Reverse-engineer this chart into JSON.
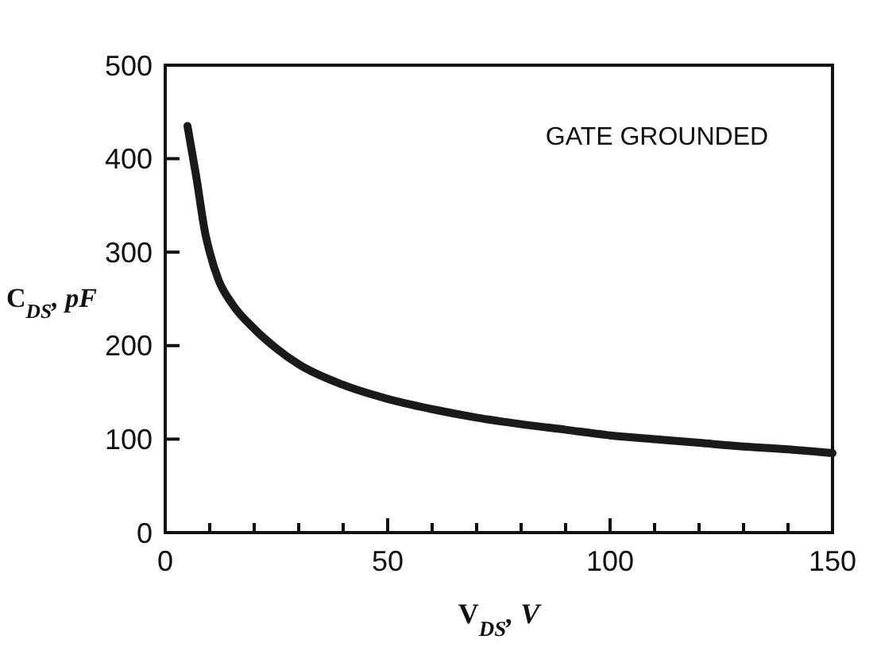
{
  "chart_data": {
    "type": "line",
    "xlabel": "V$_{DS}$, V",
    "ylabel": "C$_{DS}$, pF",
    "annotations": [
      "GATE GROUNDED"
    ],
    "xlim": [
      0,
      150
    ],
    "ylim": [
      0,
      500
    ],
    "xticks": [
      0,
      {
        "value": 10,
        "label": null
      },
      {
        "value": 20,
        "label": null
      },
      {
        "value": 30,
        "label": null
      },
      {
        "value": 40,
        "label": null
      },
      50,
      {
        "value": 60,
        "label": null
      },
      {
        "value": 70,
        "label": null
      },
      {
        "value": 80,
        "label": null
      },
      {
        "value": 90,
        "label": null
      },
      100,
      {
        "value": 110,
        "label": null
      },
      {
        "value": 120,
        "label": null
      },
      {
        "value": 130,
        "label": null
      },
      {
        "value": 140,
        "label": null
      },
      150
    ],
    "yticks": [
      0,
      100,
      200,
      300,
      400,
      500
    ],
    "grid": false,
    "marker": "none",
    "line_style": "solid",
    "series": [
      {
        "color": "#1a1a1a",
        "x": [
          5,
          7,
          9,
          10,
          12,
          15,
          20,
          25,
          30,
          40,
          50,
          60,
          70,
          80,
          90,
          100,
          110,
          120,
          130,
          140,
          150
        ],
        "values": [
          435,
          380,
          320,
          300,
          270,
          245,
          218,
          197,
          180,
          158,
          143,
          132,
          123,
          116,
          110,
          104,
          100,
          96,
          92,
          89,
          85
        ]
      }
    ]
  }
}
